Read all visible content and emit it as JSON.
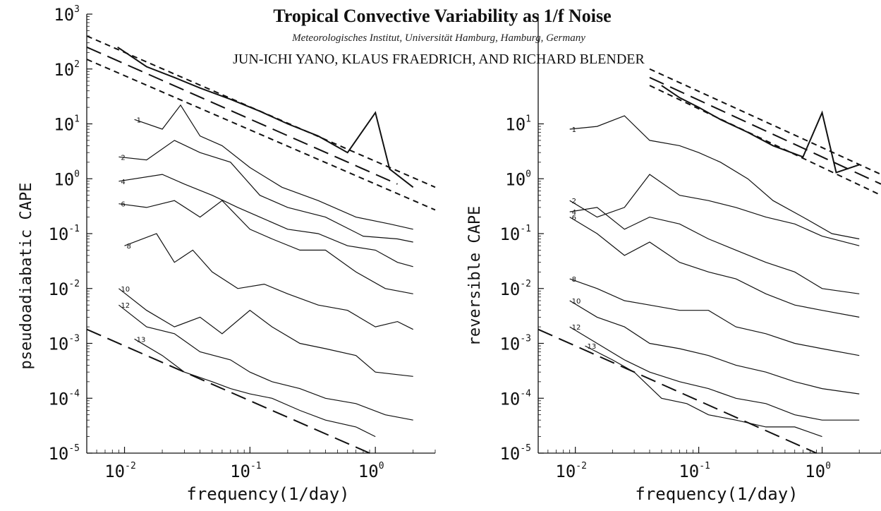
{
  "header": {
    "title": "Tropical Convective Variability as 1/f Noise",
    "affiliation": "Meteorologisches Institut, Universität Hamburg, Hamburg, Germany",
    "authors": "JUN-ICHI YANO, KLAUS FRAEDRICH, AND RICHARD BLENDER"
  },
  "chart_data": [
    {
      "type": "line",
      "ylabel": "pseudoadiabatic CAPE",
      "xlabel": "frequency(1/day)",
      "xscale": "log",
      "yscale": "log",
      "xlim": [
        0.005,
        3
      ],
      "ylim": [
        1e-05,
        1000
      ],
      "x_ticks": [
        "10^-2",
        "10^-1",
        "10^0"
      ],
      "y_ticks": [
        "10^-5",
        "10^-4",
        "10^-3",
        "10^-2",
        "10^-1",
        "10^0",
        "10^1",
        "10^2",
        "10^3"
      ],
      "grid": false,
      "reference_lines": [
        {
          "style": "long-dash",
          "x": [
            0.005,
            0.9
          ],
          "y": [
            0.0018,
            1e-05
          ]
        },
        {
          "style": "short-dash",
          "x": [
            0.005,
            3
          ],
          "y": [
            400,
            0.7
          ]
        },
        {
          "style": "long-dash",
          "x": [
            0.005,
            1.5
          ],
          "y": [
            250,
            0.8
          ]
        },
        {
          "style": "short-dash",
          "x": [
            0.005,
            3
          ],
          "y": [
            150,
            0.27
          ]
        }
      ],
      "series": [
        {
          "x": [
            0.0088,
            0.015,
            0.025,
            0.04,
            0.07,
            0.12,
            0.2,
            0.35,
            0.6,
            1.0,
            1.3,
            2.0
          ],
          "y": [
            250,
            110,
            70,
            45,
            28,
            17,
            10,
            6,
            3,
            16,
            1.5,
            0.7
          ]
        },
        {
          "label": "1",
          "x": [
            0.012,
            0.02,
            0.028,
            0.04,
            0.06,
            0.1,
            0.18,
            0.35,
            0.7,
            1.3,
            2.0
          ],
          "y": [
            12,
            8,
            22,
            6,
            4,
            1.6,
            0.7,
            0.4,
            0.2,
            0.15,
            0.12
          ]
        },
        {
          "label": "2",
          "x": [
            0.009,
            0.015,
            0.025,
            0.04,
            0.07,
            0.12,
            0.2,
            0.4,
            0.8,
            1.5,
            2.0
          ],
          "y": [
            2.5,
            2.2,
            5,
            3,
            2,
            0.5,
            0.3,
            0.2,
            0.09,
            0.08,
            0.07
          ]
        },
        {
          "label": "4",
          "x": [
            0.009,
            0.02,
            0.03,
            0.05,
            0.08,
            0.12,
            0.2,
            0.35,
            0.6,
            1.0,
            1.5,
            2.0
          ],
          "y": [
            0.9,
            1.2,
            0.8,
            0.5,
            0.3,
            0.2,
            0.12,
            0.1,
            0.06,
            0.05,
            0.03,
            0.025
          ]
        },
        {
          "label": "6",
          "x": [
            0.009,
            0.015,
            0.025,
            0.04,
            0.06,
            0.1,
            0.15,
            0.25,
            0.4,
            0.7,
            1.2,
            2.0
          ],
          "y": [
            0.35,
            0.3,
            0.4,
            0.2,
            0.4,
            0.12,
            0.08,
            0.05,
            0.05,
            0.02,
            0.01,
            0.008
          ]
        },
        {
          "label": "8",
          "x": [
            0.01,
            0.018,
            0.025,
            0.035,
            0.05,
            0.08,
            0.13,
            0.2,
            0.35,
            0.6,
            1.0,
            1.5,
            2.0
          ],
          "y": [
            0.06,
            0.1,
            0.03,
            0.05,
            0.02,
            0.01,
            0.012,
            0.008,
            0.005,
            0.004,
            0.002,
            0.0025,
            0.0018
          ]
        },
        {
          "label": "10",
          "x": [
            0.009,
            0.015,
            0.025,
            0.04,
            0.06,
            0.1,
            0.15,
            0.25,
            0.4,
            0.7,
            1.0,
            2.0
          ],
          "y": [
            0.01,
            0.004,
            0.002,
            0.003,
            0.0015,
            0.004,
            0.002,
            0.001,
            0.0008,
            0.0006,
            0.0003,
            0.00025
          ]
        },
        {
          "label": "12",
          "x": [
            0.009,
            0.015,
            0.025,
            0.04,
            0.07,
            0.1,
            0.15,
            0.25,
            0.4,
            0.7,
            1.2,
            2.0
          ],
          "y": [
            0.005,
            0.002,
            0.0015,
            0.0007,
            0.0005,
            0.0003,
            0.0002,
            0.00015,
            0.0001,
            8e-05,
            5e-05,
            4e-05
          ]
        },
        {
          "label": "13",
          "x": [
            0.012,
            0.02,
            0.03,
            0.05,
            0.07,
            0.1,
            0.15,
            0.25,
            0.4,
            0.7,
            1.0
          ],
          "y": [
            0.0012,
            0.0006,
            0.0003,
            0.0002,
            0.00015,
            0.00012,
            0.0001,
            6e-05,
            4e-05,
            3e-05,
            2e-05
          ]
        }
      ]
    },
    {
      "type": "line",
      "ylabel": "reversible CAPE",
      "xlabel": "frequency(1/day)",
      "xscale": "log",
      "yscale": "log",
      "xlim": [
        0.005,
        3
      ],
      "ylim": [
        1e-05,
        1000
      ],
      "x_ticks": [
        "10^-2",
        "10^-1",
        "10^0"
      ],
      "y_ticks": [
        "10^-5",
        "10^-4",
        "10^-3",
        "10^-2",
        "10^-1",
        "10^0",
        "10^1"
      ],
      "grid": false,
      "reference_lines": [
        {
          "style": "long-dash",
          "x": [
            0.005,
            0.9
          ],
          "y": [
            0.0018,
            1e-05
          ]
        },
        {
          "style": "short-dash",
          "x": [
            0.04,
            3
          ],
          "y": [
            100,
            1.2
          ]
        },
        {
          "style": "long-dash",
          "x": [
            0.04,
            3
          ],
          "y": [
            70,
            0.8
          ]
        },
        {
          "style": "short-dash",
          "x": [
            0.04,
            3
          ],
          "y": [
            50,
            0.5
          ]
        }
      ],
      "series": [
        {
          "x": [
            0.05,
            0.07,
            0.1,
            0.15,
            0.25,
            0.4,
            0.7,
            1.0,
            1.3,
            2.0
          ],
          "y": [
            50,
            30,
            20,
            12,
            7,
            4,
            2.5,
            16,
            1.3,
            1.8
          ]
        },
        {
          "label": "1",
          "x": [
            0.009,
            0.015,
            0.025,
            0.04,
            0.07,
            0.1,
            0.15,
            0.25,
            0.4,
            0.7,
            1.2,
            2.0
          ],
          "y": [
            8,
            9,
            14,
            5,
            4,
            3,
            2,
            1,
            0.4,
            0.2,
            0.1,
            0.08
          ]
        },
        {
          "label": "2",
          "x": [
            0.009,
            0.015,
            0.025,
            0.04,
            0.07,
            0.12,
            0.2,
            0.35,
            0.6,
            1.0,
            2.0
          ],
          "y": [
            0.4,
            0.2,
            0.3,
            1.2,
            0.5,
            0.4,
            0.3,
            0.2,
            0.15,
            0.09,
            0.06
          ]
        },
        {
          "label": "4",
          "x": [
            0.009,
            0.015,
            0.025,
            0.04,
            0.07,
            0.12,
            0.2,
            0.35,
            0.6,
            1.0,
            2.0
          ],
          "y": [
            0.25,
            0.3,
            0.12,
            0.2,
            0.15,
            0.08,
            0.05,
            0.03,
            0.02,
            0.01,
            0.008
          ]
        },
        {
          "label": "6",
          "x": [
            0.009,
            0.015,
            0.025,
            0.04,
            0.07,
            0.12,
            0.2,
            0.35,
            0.6,
            1.0,
            2.0
          ],
          "y": [
            0.2,
            0.1,
            0.04,
            0.07,
            0.03,
            0.02,
            0.015,
            0.008,
            0.005,
            0.004,
            0.003
          ]
        },
        {
          "label": "8",
          "x": [
            0.009,
            0.015,
            0.025,
            0.04,
            0.07,
            0.12,
            0.2,
            0.35,
            0.6,
            1.0,
            2.0
          ],
          "y": [
            0.015,
            0.01,
            0.006,
            0.005,
            0.004,
            0.004,
            0.002,
            0.0015,
            0.001,
            0.0008,
            0.0006
          ]
        },
        {
          "label": "10",
          "x": [
            0.009,
            0.015,
            0.025,
            0.04,
            0.07,
            0.12,
            0.2,
            0.35,
            0.6,
            1.0,
            2.0
          ],
          "y": [
            0.006,
            0.003,
            0.002,
            0.001,
            0.0008,
            0.0006,
            0.0004,
            0.0003,
            0.0002,
            0.00015,
            0.00012
          ]
        },
        {
          "label": "12",
          "x": [
            0.009,
            0.015,
            0.025,
            0.04,
            0.07,
            0.12,
            0.2,
            0.35,
            0.6,
            1.0,
            2.0
          ],
          "y": [
            0.002,
            0.001,
            0.0005,
            0.0003,
            0.0002,
            0.00015,
            0.0001,
            8e-05,
            5e-05,
            4e-05,
            4e-05
          ]
        },
        {
          "label": "13",
          "x": [
            0.012,
            0.02,
            0.03,
            0.05,
            0.08,
            0.12,
            0.2,
            0.35,
            0.6,
            1.0
          ],
          "y": [
            0.0009,
            0.0005,
            0.0003,
            0.0001,
            8e-05,
            5e-05,
            4e-05,
            3e-05,
            3e-05,
            2e-05
          ]
        }
      ]
    }
  ]
}
